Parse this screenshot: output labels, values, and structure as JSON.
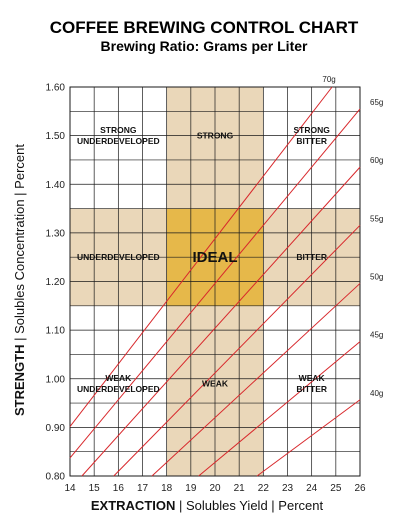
{
  "chart_data": {
    "type": "line",
    "title": "COFFEE BREWING CONTROL CHART",
    "subtitle": "Brewing Ratio: Grams per Liter",
    "xlabel_bold": "EXTRACTION",
    "xlabel_rest": "Solubles Yield",
    "xlabel_unit": "Percent",
    "ylabel_bold": "STRENGTH",
    "ylabel_rest": "Solubles Concentration",
    "ylabel_unit": "Percent",
    "xlim": [
      14,
      26
    ],
    "ylim": [
      0.8,
      1.6
    ],
    "x_ticks": [
      "14",
      "15",
      "16",
      "17",
      "18",
      "19",
      "20",
      "21",
      "22",
      "23",
      "24",
      "25",
      "26"
    ],
    "y_ticks": [
      "0.80",
      "0.90",
      "1.00",
      "1.10",
      "1.20",
      "1.30",
      "1.40",
      "1.50",
      "1.60"
    ],
    "x_grid_step": 1,
    "y_grid_step": 0.05,
    "ideal_band_x": [
      18,
      22
    ],
    "ideal_band_y": [
      1.15,
      1.35
    ],
    "colors": {
      "band": "#ead7b9",
      "ideal": "#e6b84a",
      "ratio_line": "#d8282c",
      "grid": "#1a1a1a"
    },
    "ratio_lines": [
      {
        "label": "70g",
        "slope": 0.0644
      },
      {
        "label": "65g",
        "slope": 0.0598
      },
      {
        "label": "60g",
        "slope": 0.0552
      },
      {
        "label": "55g",
        "slope": 0.0506
      },
      {
        "label": "50g",
        "slope": 0.046
      },
      {
        "label": "45g",
        "slope": 0.0414
      },
      {
        "label": "40g",
        "slope": 0.0368
      }
    ],
    "region_labels": [
      {
        "lines": [
          "STRONG",
          "UNDERDEVELOPED"
        ],
        "x": 16.0,
        "y": 1.5
      },
      {
        "lines": [
          "STRONG"
        ],
        "x": 20.0,
        "y": 1.5
      },
      {
        "lines": [
          "STRONG",
          "BITTER"
        ],
        "x": 24.0,
        "y": 1.5
      },
      {
        "lines": [
          "UNDERDEVELOPED"
        ],
        "x": 16.0,
        "y": 1.25
      },
      {
        "lines": [
          "IDEAL"
        ],
        "x": 20.0,
        "y": 1.25,
        "big": true
      },
      {
        "lines": [
          "BITTER"
        ],
        "x": 24.0,
        "y": 1.25
      },
      {
        "lines": [
          "WEAK",
          "UNDERDEVELOPED"
        ],
        "x": 16.0,
        "y": 0.99
      },
      {
        "lines": [
          "WEAK"
        ],
        "x": 20.0,
        "y": 0.99
      },
      {
        "lines": [
          "WEAK",
          "BITTER"
        ],
        "x": 24.0,
        "y": 0.99
      }
    ]
  }
}
